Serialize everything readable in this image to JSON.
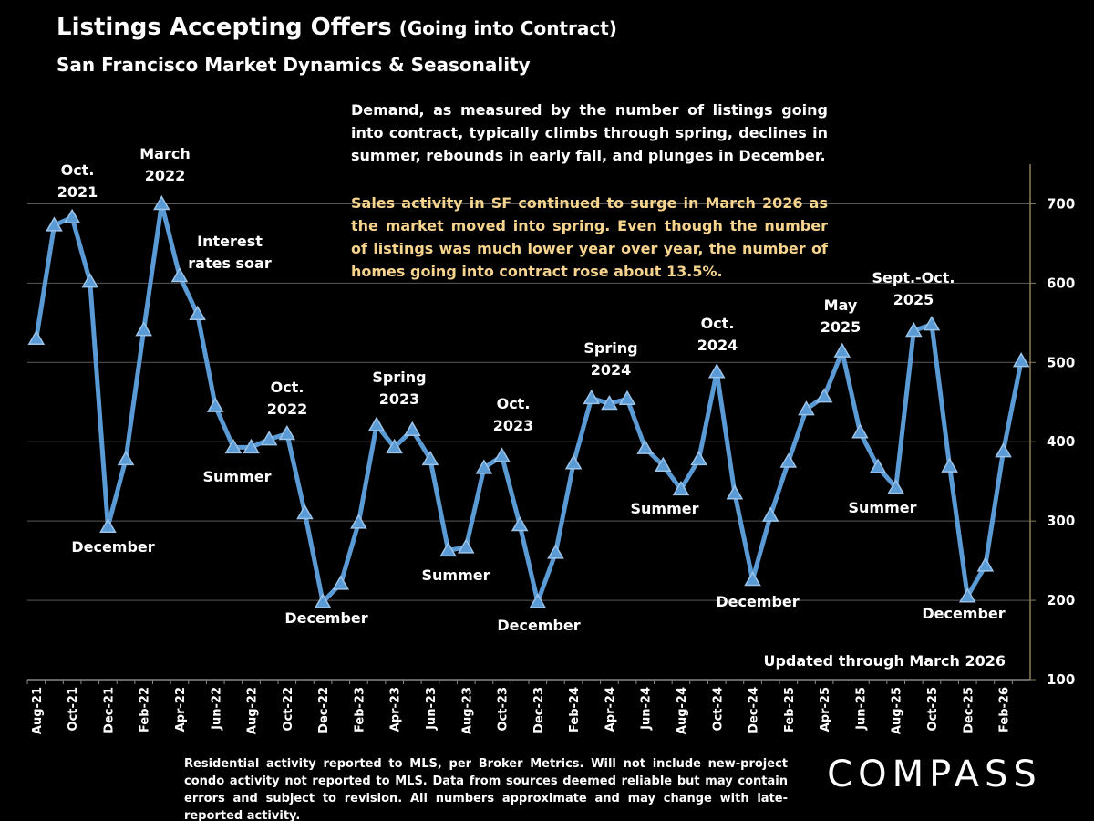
{
  "chart_data": {
    "type": "line",
    "title": "Listings Accepting Offers",
    "title_note": "(Going into Contract)",
    "subtitle": "San Francisco Market Dynamics & Seasonality",
    "categories": [
      "Aug-21",
      null,
      "Oct-21",
      null,
      "Dec-21",
      null,
      "Feb-22",
      null,
      "Apr-22",
      null,
      "Jun-22",
      null,
      "Aug-22",
      null,
      "Oct-22",
      null,
      "Dec-22",
      null,
      "Feb-23",
      null,
      "Apr-23",
      null,
      "Jun-23",
      null,
      "Aug-23",
      null,
      "Oct-23",
      null,
      "Dec-23",
      null,
      "Feb-24",
      null,
      "Apr-24",
      null,
      "Jun-24",
      null,
      "Aug-24",
      null,
      "Oct-24",
      null,
      "Dec-24",
      null,
      "Feb-25",
      null,
      "Apr-25",
      null,
      "Jun-25",
      null,
      "Aug-25",
      null,
      "Oct-25",
      null,
      "Dec-25",
      null,
      "Feb-26",
      null
    ],
    "values": [
      530,
      673,
      683,
      602,
      293,
      378,
      541,
      700,
      609,
      561,
      445,
      393,
      393,
      403,
      410,
      310,
      198,
      221,
      298,
      421,
      393,
      415,
      378,
      263,
      267,
      367,
      382,
      295,
      198,
      260,
      373,
      455,
      448,
      454,
      392,
      370,
      340,
      378,
      488,
      335,
      226,
      307,
      375,
      441,
      457,
      514,
      412,
      368,
      342,
      540,
      548,
      369,
      205,
      244,
      388,
      502
    ],
    "color": "#5b9bd5",
    "ylim": [
      100,
      750
    ],
    "yticks": [
      100,
      200,
      300,
      400,
      500,
      600,
      700
    ],
    "grid": true,
    "annotations": [
      {
        "lines": [
          "Oct.",
          "2021"
        ]
      },
      {
        "lines": [
          "March",
          "2022"
        ]
      },
      {
        "lines": [
          "Interest",
          "rates soar"
        ]
      },
      {
        "lines": [
          "December"
        ]
      },
      {
        "lines": [
          "Summer"
        ]
      },
      {
        "lines": [
          "Oct.",
          "2022"
        ]
      },
      {
        "lines": [
          "December"
        ]
      },
      {
        "lines": [
          "Spring",
          "2023"
        ]
      },
      {
        "lines": [
          "Summer"
        ]
      },
      {
        "lines": [
          "Oct.",
          "2023"
        ]
      },
      {
        "lines": [
          "December"
        ]
      },
      {
        "lines": [
          "Spring",
          "2024"
        ]
      },
      {
        "lines": [
          "Summer"
        ]
      },
      {
        "lines": [
          "Oct.",
          "2024"
        ]
      },
      {
        "lines": [
          "December"
        ]
      },
      {
        "lines": [
          "May",
          "2025"
        ]
      },
      {
        "lines": [
          "Summer"
        ]
      },
      {
        "lines": [
          "Sept.-Oct.",
          "2025"
        ]
      },
      {
        "lines": [
          "December"
        ]
      }
    ],
    "paragraphs": [
      "Demand, as measured by the number of listings going into contract, typically climbs through spring, declines in summer, rebounds in early fall, and plunges in December.",
      "Sales activity in SF continued to surge in March 2026 as the market moved into spring. Even though the number of listings was much lower year over year, the number of homes going into contract rose about 13.5%."
    ],
    "updated": "Updated through March 2026",
    "footnote": "Residential activity reported to MLS, per Broker Metrics. Will not include new-project condo activity not reported to MLS. Data from sources deemed reliable but may contain errors and subject to revision. All numbers approximate and may change with late-reported activity.",
    "logo": "COMPASS"
  }
}
